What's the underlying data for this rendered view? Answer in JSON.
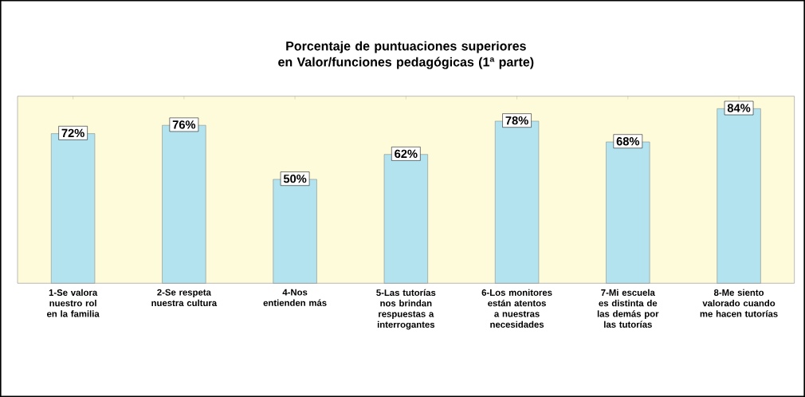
{
  "chart_data": {
    "type": "bar",
    "title": "Porcentaje de puntuaciones superiores en Valor/funciones pedagógicas (1ª parte)",
    "categories": [
      "1-Se valora nuestro rol en la familia",
      "2-Se respeta nuestra cultura",
      "4-Nos entienden más",
      "5-Las tutorías nos brindan respuestas a interrogantes",
      "6-Los monitores están atentos a nuestras necesidades",
      "7-Mi escuela es distinta de las demás por las tutorías",
      "8-Me siento valorado cuando me hacen tutorías"
    ],
    "values": [
      72,
      76,
      50,
      62,
      78,
      68,
      84
    ],
    "value_labels": [
      "72%",
      "76%",
      "50%",
      "62%",
      "78%",
      "68%",
      "84%"
    ],
    "color": "#b3e3ee",
    "ylim": [
      0,
      90
    ],
    "tick_labels": "x"
  }
}
